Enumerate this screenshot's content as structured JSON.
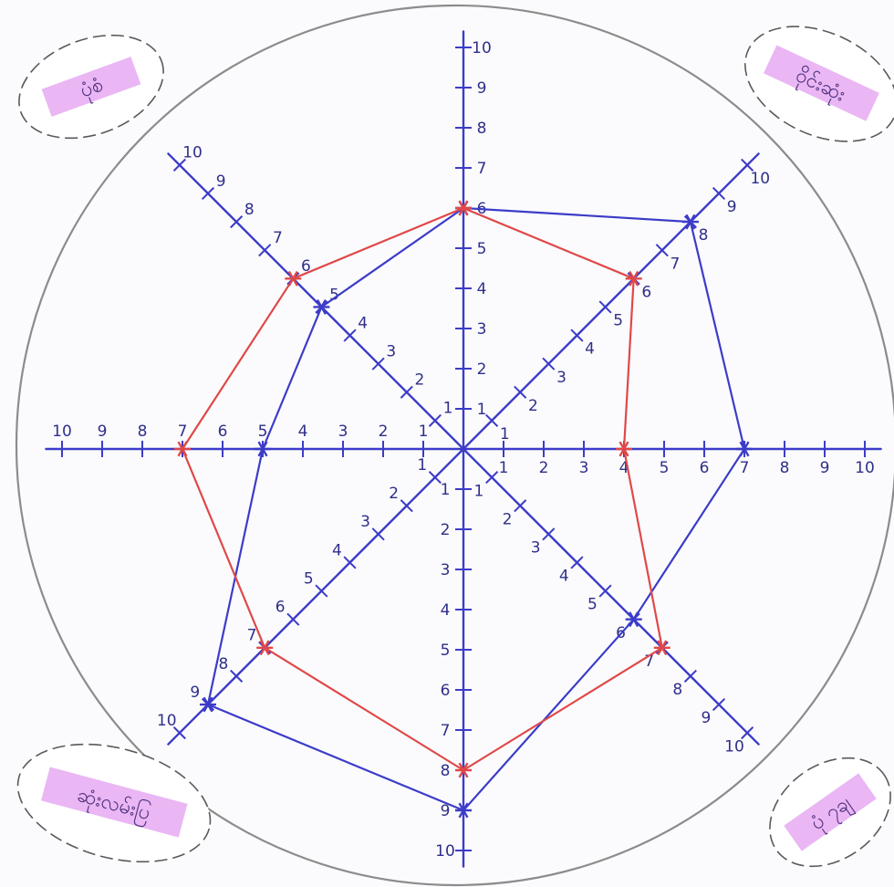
{
  "chart_data": {
    "type": "radar",
    "title": "",
    "axis_count": 8,
    "axis_max": 10,
    "axis_ticks": [
      1,
      2,
      3,
      4,
      5,
      6,
      7,
      8,
      9,
      10
    ],
    "grid": false,
    "outer_circle": true,
    "series": [
      {
        "color": "#3c3cc8",
        "values": [
          6,
          8,
          7,
          6,
          9,
          9,
          5,
          5
        ]
      },
      {
        "color": "#e04848",
        "values": [
          6,
          6,
          4,
          7,
          8,
          7,
          7,
          6
        ]
      }
    ]
  },
  "corner_labels": [
    {
      "text": "ပုံစံ"
    },
    {
      "text": "ဝိုင်းဆုံး"
    },
    {
      "text": "ဆုံးလမ်းပြ"
    },
    {
      "text": "ပုံ ၇ချ"
    }
  ]
}
